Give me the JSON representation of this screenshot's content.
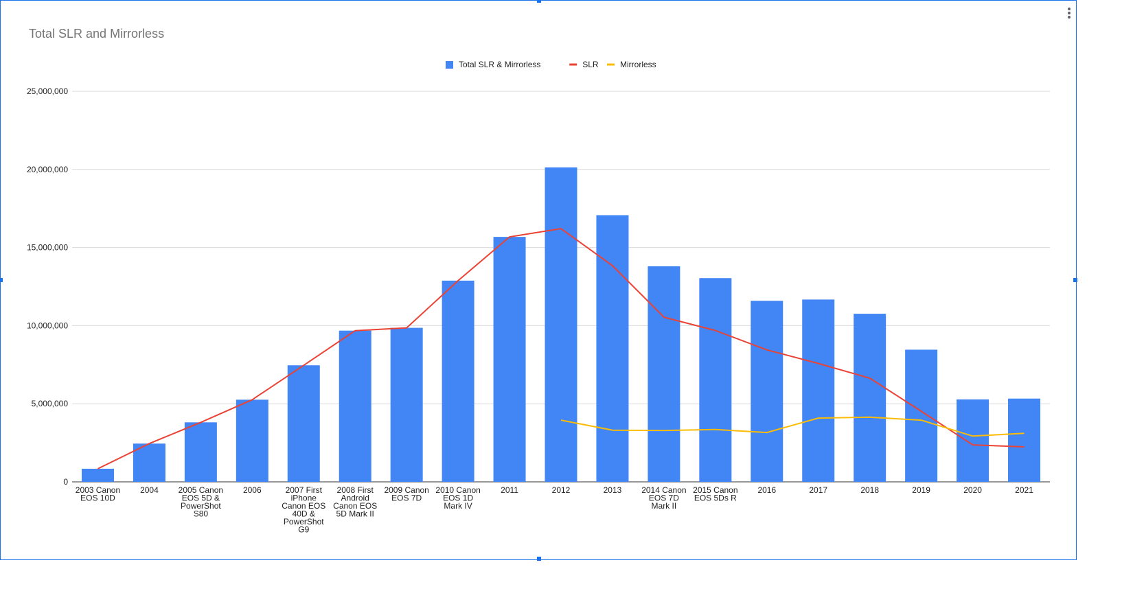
{
  "chart_data": {
    "type": "bar",
    "title": "Total SLR and Mirrorless",
    "xlabel": "",
    "ylabel": "",
    "ylim": [
      0,
      25000000
    ],
    "yticks": [
      "0",
      "5,000,000",
      "10,000,000",
      "15,000,000",
      "20,000,000",
      "25,000,000"
    ],
    "grid": true,
    "legend": "top-center",
    "categories": [
      "2003 Canon EOS 10D",
      "2004",
      "2005 Canon EOS 5D & PowerShot S80",
      "2006",
      "2007 First iPhone Canon EOS 40D & PowerShot G9",
      "2008 First Android Canon EOS 5D Mark II",
      "2009 Canon EOS 7D",
      "2010 Canon EOS 1D Mark IV",
      "2011",
      "2012",
      "2013",
      "2014 Canon EOS 7D Mark II",
      "2015 Canon EOS 5Ds R",
      "2016",
      "2017",
      "2018",
      "2019",
      "2020",
      "2021"
    ],
    "category_lines": [
      [
        "2003 Canon",
        "EOS 10D"
      ],
      [
        "2004"
      ],
      [
        "2005 Canon",
        "EOS 5D &",
        "PowerShot",
        "S80"
      ],
      [
        "2006"
      ],
      [
        "2007 First",
        "iPhone",
        "Canon EOS",
        "40D &",
        "PowerShot",
        "G9"
      ],
      [
        "2008 First",
        "Android",
        "Canon EOS",
        "5D Mark II"
      ],
      [
        "2009 Canon",
        "EOS 7D"
      ],
      [
        "2010 Canon",
        "EOS 1D",
        "Mark IV"
      ],
      [
        "2011"
      ],
      [
        "2012"
      ],
      [
        "2013"
      ],
      [
        "2014 Canon",
        "EOS 7D",
        "Mark II"
      ],
      [
        "2015 Canon",
        "EOS 5Ds R"
      ],
      [
        "2016"
      ],
      [
        "2017"
      ],
      [
        "2018"
      ],
      [
        "2019"
      ],
      [
        "2020"
      ],
      [
        "2021"
      ]
    ],
    "series": [
      {
        "name": "Total SLR & Mirrorless",
        "type": "bar",
        "color": "#4285f4",
        "values": [
          840000,
          2450000,
          3810000,
          5260000,
          7460000,
          9680000,
          9860000,
          12880000,
          15680000,
          20130000,
          17070000,
          13800000,
          13040000,
          11590000,
          11670000,
          10760000,
          8460000,
          5280000,
          5330000
        ]
      },
      {
        "name": "SLR",
        "type": "line",
        "color": "#ea4335",
        "values": [
          840000,
          2450000,
          3810000,
          5260000,
          7460000,
          9680000,
          9860000,
          12880000,
          15680000,
          16210000,
          13840000,
          10540000,
          9690000,
          8450000,
          7580000,
          6640000,
          4520000,
          2370000,
          2240000
        ]
      },
      {
        "name": "Mirrorless",
        "type": "line",
        "color": "#fbbc04",
        "values": [
          null,
          null,
          null,
          null,
          null,
          null,
          null,
          null,
          null,
          3950000,
          3310000,
          3290000,
          3350000,
          3160000,
          4080000,
          4140000,
          3950000,
          2930000,
          3110000
        ]
      }
    ]
  }
}
